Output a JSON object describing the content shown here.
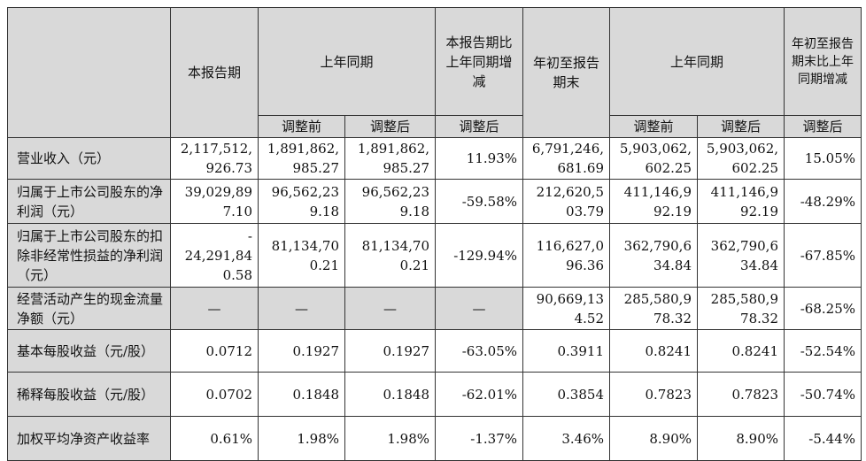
{
  "header": {
    "current_period": "本报告期",
    "prior_period": "上年同期",
    "yoy_change": "本报告期比上年同期增减",
    "ytd": "年初至报告期末",
    "prior_ytd": "上年同期",
    "ytd_change": "年初至报告期末比上年同期增减",
    "before_adj": "调整前",
    "after_adj": "调整后"
  },
  "rows": [
    {
      "label": "营业收入（元）",
      "v": [
        "2,117,512,\n926.73",
        "1,891,862,\n985.27",
        "1,891,862,\n985.27",
        "11.93%",
        "6,791,246,\n681.69",
        "5,903,062,\n602.25",
        "5,903,062,\n602.25",
        "15.05%"
      ]
    },
    {
      "label": "归属于上市公司股东的净利润（元）",
      "v": [
        "39,029,89\n7.10",
        "96,562,23\n9.18",
        "96,562,23\n9.18",
        "-59.58%",
        "212,620,5\n03.79",
        "411,146,9\n92.19",
        "411,146,9\n92.19",
        "-48.29%"
      ]
    },
    {
      "label": "归属于上市公司股东的扣除非经常性损益的净利润（元）",
      "v": [
        "-\n24,291,84\n0.58",
        "81,134,70\n0.21",
        "81,134,70\n0.21",
        "-129.94%",
        "116,627,0\n96.36",
        "362,790,6\n34.84",
        "362,790,6\n34.84",
        "-67.85%"
      ]
    },
    {
      "label": "经营活动产生的现金流量净额（元）",
      "v": [
        "—",
        "—",
        "—",
        "—",
        "90,669,13\n4.52",
        "285,580,9\n78.32",
        "285,580,9\n78.32",
        "-68.25%"
      ]
    },
    {
      "label": "基本每股收益（元/股）",
      "v": [
        "0.0712",
        "0.1927",
        "0.1927",
        "-63.05%",
        "0.3911",
        "0.8241",
        "0.8241",
        "-52.54%"
      ]
    },
    {
      "label": "稀释每股收益（元/股）",
      "v": [
        "0.0702",
        "0.1848",
        "0.1848",
        "-62.01%",
        "0.3854",
        "0.7823",
        "0.7823",
        "-50.74%"
      ]
    },
    {
      "label": "加权平均净资产收益率",
      "v": [
        "0.61%",
        "1.98%",
        "1.98%",
        "-1.37%",
        "3.46%",
        "8.90%",
        "8.90%",
        "-5.44%"
      ]
    }
  ]
}
